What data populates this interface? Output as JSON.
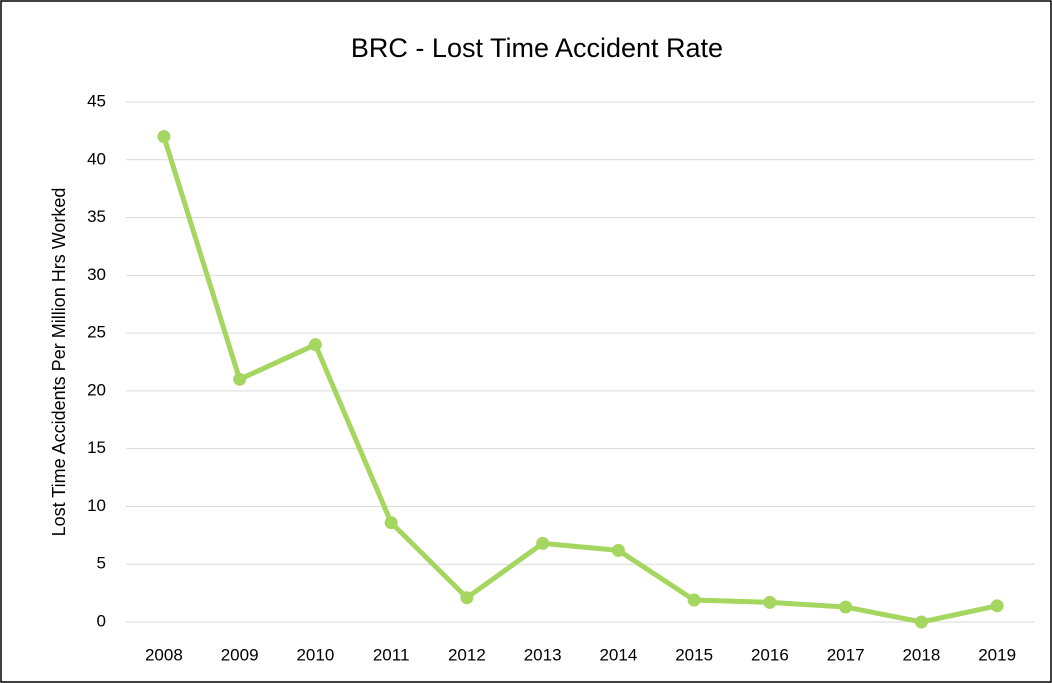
{
  "chart_data": {
    "type": "line",
    "title": "BRC  -  Lost Time Accident Rate",
    "y_label": "Lost Time Accidents Per Million Hrs Worked",
    "categories": [
      "2008",
      "2009",
      "2010",
      "2011",
      "2012",
      "2013",
      "2014",
      "2015",
      "2016",
      "2017",
      "2018",
      "2019"
    ],
    "values": [
      42,
      21,
      24,
      8.6,
      2.1,
      6.8,
      6.2,
      1.9,
      1.7,
      1.3,
      0,
      1.4
    ],
    "color": "#a5d65f",
    "ylim": [
      0,
      45
    ],
    "yticks": [
      0,
      5,
      10,
      15,
      20,
      25,
      30,
      35,
      40,
      45
    ],
    "grid": true
  }
}
